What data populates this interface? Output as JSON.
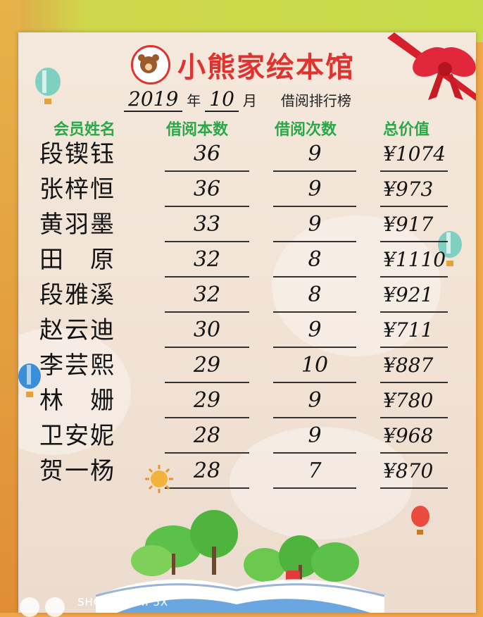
{
  "brand": {
    "name": "小熊家绘本馆"
  },
  "subtitle": {
    "year": "2019",
    "year_label": "年",
    "month": "10",
    "month_label": "月",
    "title": "借阅排行榜"
  },
  "columns": {
    "name": "会员姓名",
    "books": "借阅本数",
    "times": "借阅次数",
    "value": "总价值"
  },
  "rows": [
    {
      "name": "段锲钰",
      "books": "36",
      "times": "9",
      "value": "¥1074"
    },
    {
      "name": "张梓恒",
      "books": "36",
      "times": "9",
      "value": "¥973"
    },
    {
      "name": "黄羽墨",
      "books": "33",
      "times": "9",
      "value": "¥917"
    },
    {
      "name": "田　原",
      "books": "32",
      "times": "8",
      "value": "¥1110"
    },
    {
      "name": "段雅溪",
      "books": "32",
      "times": "8",
      "value": "¥921"
    },
    {
      "name": "赵云迪",
      "books": "30",
      "times": "9",
      "value": "¥711"
    },
    {
      "name": "李芸熙",
      "books": "29",
      "times": "10",
      "value": "¥887"
    },
    {
      "name": "林　姗",
      "books": "29",
      "times": "9",
      "value": "¥780"
    },
    {
      "name": "卫安妮",
      "books": "28",
      "times": "9",
      "value": "¥968"
    },
    {
      "name": "贺一杨",
      "books": "28",
      "times": "7",
      "value": "¥870"
    }
  ],
  "watermark": "SHOT ON MI 5X",
  "colors": {
    "brand_red": "#e0322e",
    "header_green": "#2aa84a",
    "ink": "#141414"
  }
}
